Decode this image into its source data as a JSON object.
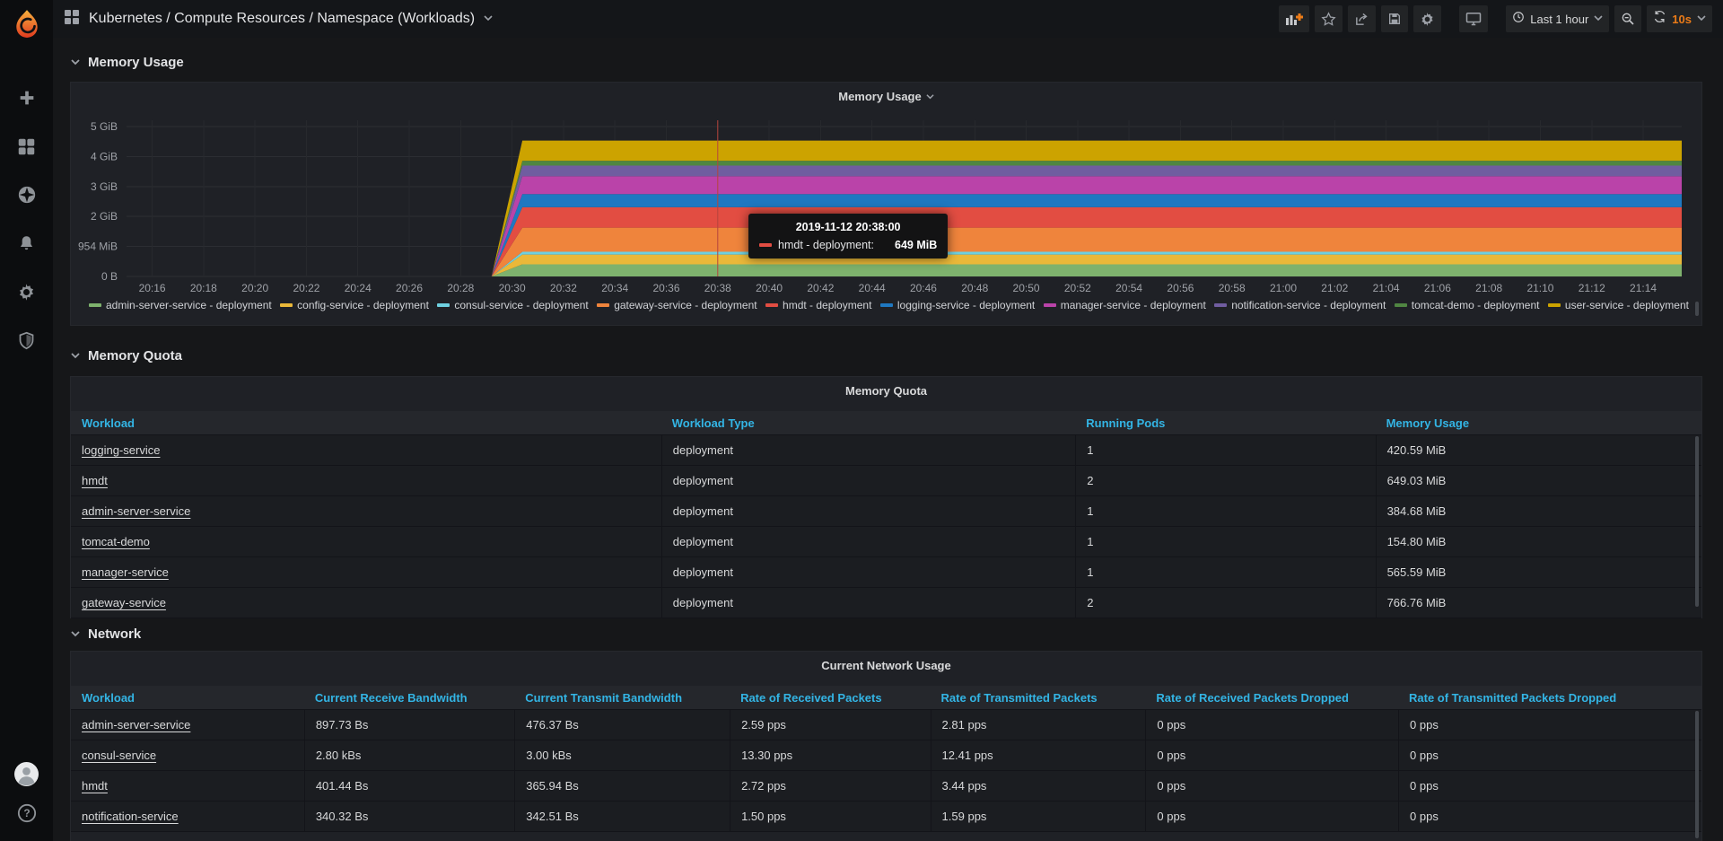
{
  "navbar": {
    "title": "Kubernetes / Compute Resources / Namespace (Workloads)",
    "time_range": "Last 1 hour",
    "refresh_interval": "10s"
  },
  "sections": {
    "memory_usage": "Memory Usage",
    "memory_quota": "Memory Quota",
    "network": "Network"
  },
  "panels": {
    "memory_usage_title": "Memory Usage",
    "memory_quota_title": "Memory Quota",
    "network_title": "Current Network Usage"
  },
  "tooltip": {
    "time": "2019-11-12 20:38:00",
    "series": "hmdt - deployment:",
    "value": "649 MiB",
    "color": "#E24D42"
  },
  "chart_data": {
    "type": "area",
    "stacked": true,
    "title": "Memory Usage",
    "legend_position": "bottom",
    "grid": true,
    "x_axis": {
      "time_origin": "20:15",
      "minutes_total": 60.5,
      "tick_labels": [
        "20:16",
        "20:18",
        "20:20",
        "20:22",
        "20:24",
        "20:26",
        "20:28",
        "20:30",
        "20:32",
        "20:34",
        "20:36",
        "20:38",
        "20:40",
        "20:42",
        "20:44",
        "20:46",
        "20:48",
        "20:50",
        "20:52",
        "20:54",
        "20:56",
        "20:58",
        "21:00",
        "21:02",
        "21:04",
        "21:06",
        "21:08",
        "21:10",
        "21:12",
        "21:14"
      ]
    },
    "y_axis": {
      "tick_labels": [
        "0 B",
        "954 MiB",
        "2 GiB",
        "3 GiB",
        "4 GiB",
        "5 GiB"
      ],
      "tick_values_gb": [
        0,
        1,
        2,
        3,
        4,
        5
      ],
      "ylim_gb": [
        0,
        5.2
      ]
    },
    "x_breakpoints_min": [
      0,
      14.2,
      15.4,
      60.5
    ],
    "series_shape": "zero until 20:29, ramp up by 20:30:30, then steady to end",
    "series": [
      {
        "name": "admin-server-service - deployment",
        "color": "#7EB26D",
        "steady_mib": 384.68
      },
      {
        "name": "config-service - deployment",
        "color": "#EAB839",
        "steady_mib": 310
      },
      {
        "name": "consul-service - deployment",
        "color": "#6ED0E0",
        "steady_mib": 90
      },
      {
        "name": "gateway-service - deployment",
        "color": "#EF843C",
        "steady_mib": 766.76
      },
      {
        "name": "hmdt - deployment",
        "color": "#E24D42",
        "steady_mib": 649.03
      },
      {
        "name": "logging-service - deployment",
        "color": "#1F78C1",
        "steady_mib": 420.59
      },
      {
        "name": "manager-service - deployment",
        "color": "#BA43A9",
        "steady_mib": 565.59
      },
      {
        "name": "notification-service - deployment",
        "color": "#705DA0",
        "steady_mib": 340
      },
      {
        "name": "tomcat-demo - deployment",
        "color": "#508642",
        "steady_mib": 154.8
      },
      {
        "name": "user-service - deployment",
        "color": "#CCA300",
        "steady_mib": 640
      }
    ],
    "crosshair_time": "20:38",
    "crosshair_time_min": 23
  },
  "memory_quota_table": {
    "title": "Memory Quota",
    "columns": [
      "Workload",
      "Workload Type",
      "Running Pods",
      "Memory Usage"
    ],
    "rows": [
      [
        "logging-service",
        "deployment",
        "1",
        "420.59 MiB"
      ],
      [
        "hmdt",
        "deployment",
        "2",
        "649.03 MiB"
      ],
      [
        "admin-server-service",
        "deployment",
        "1",
        "384.68 MiB"
      ],
      [
        "tomcat-demo",
        "deployment",
        "1",
        "154.80 MiB"
      ],
      [
        "manager-service",
        "deployment",
        "1",
        "565.59 MiB"
      ],
      [
        "gateway-service",
        "deployment",
        "2",
        "766.76 MiB"
      ]
    ]
  },
  "network_table": {
    "title": "Current Network Usage",
    "columns": [
      "Workload",
      "Current Receive Bandwidth",
      "Current Transmit Bandwidth",
      "Rate of Received Packets",
      "Rate of Transmitted Packets",
      "Rate of Received Packets Dropped",
      "Rate of Transmitted Packets Dropped"
    ],
    "rows": [
      [
        "admin-server-service",
        "897.73 Bs",
        "476.37 Bs",
        "2.59 pps",
        "2.81 pps",
        "0 pps",
        "0 pps"
      ],
      [
        "consul-service",
        "2.80 kBs",
        "3.00 kBs",
        "13.30 pps",
        "12.41 pps",
        "0 pps",
        "0 pps"
      ],
      [
        "hmdt",
        "401.44 Bs",
        "365.94 Bs",
        "2.72 pps",
        "3.44 pps",
        "0 pps",
        "0 pps"
      ],
      [
        "notification-service",
        "340.32 Bs",
        "342.51 Bs",
        "1.50 pps",
        "1.59 pps",
        "0 pps",
        "0 pps"
      ]
    ]
  },
  "colors": {
    "accent_orange": "#eb7b18",
    "table_header_blue": "#33b5e5",
    "crosshair_red": "#b5443c"
  }
}
